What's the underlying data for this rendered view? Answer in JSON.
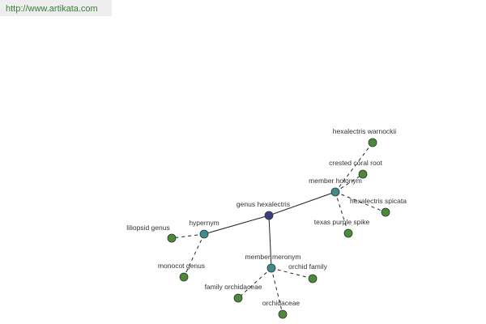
{
  "header": {
    "url": "http://www.artikata.com"
  },
  "nodes": [
    {
      "label": "genus hexalectris"
    },
    {
      "label": "hypernym"
    },
    {
      "label": "member holonym"
    },
    {
      "label": "member meronym"
    },
    {
      "label": "hexalectris warnockii"
    },
    {
      "label": "crested coral root"
    },
    {
      "label": "hexalectris spicata"
    },
    {
      "label": "texas purple spike"
    },
    {
      "label": "liliopsid genus"
    },
    {
      "label": "monocot genus"
    },
    {
      "label": "orchid family"
    },
    {
      "label": "family orchidaceae"
    },
    {
      "label": "orchidaceae"
    }
  ]
}
